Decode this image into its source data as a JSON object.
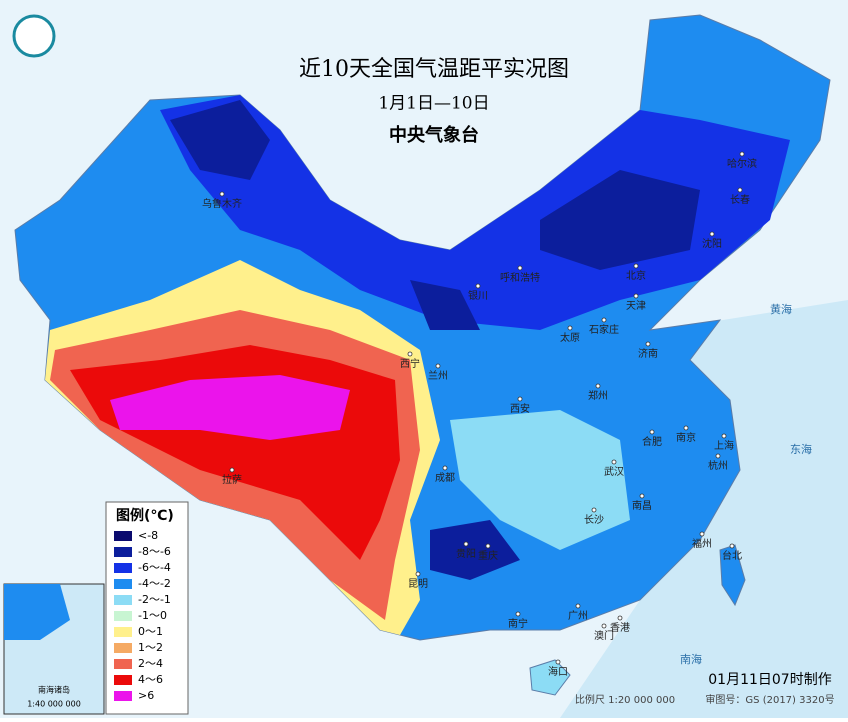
{
  "header": {
    "title": "近10天全国气温距平实况图",
    "date": "1月1日—10日",
    "agency": "中央气象台"
  },
  "legend": {
    "title": "图例(℃)",
    "items": [
      {
        "label": "<-8",
        "color": "#0a0a6e"
      },
      {
        "label": "-8～-6",
        "color": "#0c1e9c"
      },
      {
        "label": "-6～-4",
        "color": "#1432e6"
      },
      {
        "label": "-4～-2",
        "color": "#1e8cf0"
      },
      {
        "label": "-2～-1",
        "color": "#8cdcf5"
      },
      {
        "label": "-1～0",
        "color": "#c8f5d2"
      },
      {
        "label": "0～1",
        "color": "#fff08c"
      },
      {
        "label": "1～2",
        "color": "#f5aa64"
      },
      {
        "label": "2～4",
        "color": "#f06450"
      },
      {
        "label": "4～6",
        "color": "#eb0a0a"
      },
      {
        "label": ">6",
        "color": "#eb14eb"
      }
    ]
  },
  "cities": [
    "乌鲁木齐",
    "拉萨",
    "西宁",
    "兰州",
    "银川",
    "呼和浩特",
    "哈尔滨",
    "长春",
    "沈阳",
    "北京",
    "天津",
    "石家庄",
    "太原",
    "济南",
    "郑州",
    "西安",
    "成都",
    "重庆",
    "武汉",
    "合肥",
    "南京",
    "上海",
    "杭州",
    "长沙",
    "南昌",
    "福州",
    "台北",
    "贵阳",
    "昆明",
    "南宁",
    "广州",
    "香港",
    "澳门",
    "海口"
  ],
  "seas": [
    "黄海",
    "东海",
    "南海"
  ],
  "inset": {
    "title": "南海诸岛",
    "scale": "1:40 000 000"
  },
  "footer": {
    "made": "01月11日07时制作",
    "scale": "比例尺 1:20 000 000",
    "approval": "审图号：GS (2017) 3320号"
  }
}
